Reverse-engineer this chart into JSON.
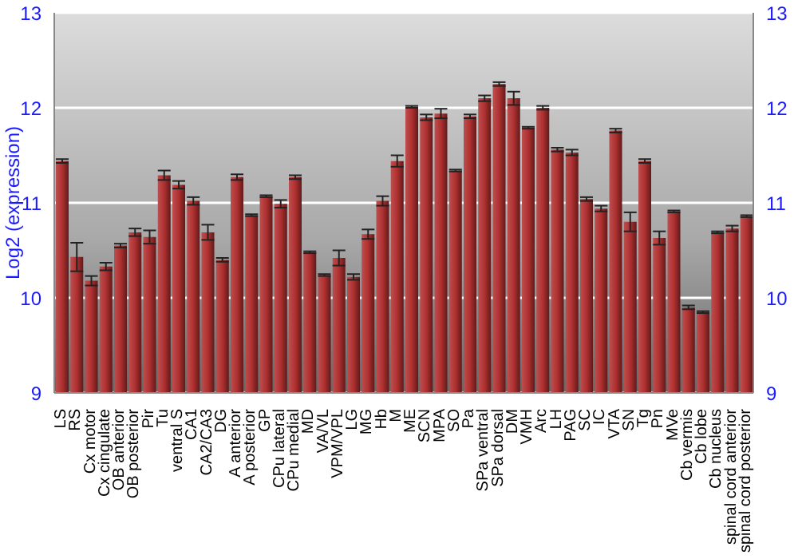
{
  "chart_data": {
    "type": "bar",
    "ylabel": "Log2 (expression)",
    "categories": [
      "LS",
      "RS",
      "Cx motor",
      "Cx cingulate",
      "OB anterior",
      "OB posterior",
      "Pir",
      "Tu",
      "ventral S",
      "CA1",
      "CA2/CA3",
      "DG",
      "A anterior",
      "A posterior",
      "GP",
      "CPu lateral",
      "CPu medial",
      "MD",
      "VA/VL",
      "VPM/VPL",
      "LG",
      "MG",
      "Hb",
      "M",
      "ME",
      "SCN",
      "MPA",
      "SO",
      "Pa",
      "SPa ventral",
      "SPa dorsal",
      "DM",
      "VMH",
      "Arc",
      "LH",
      "PAG",
      "SC",
      "IC",
      "VTA",
      "SN",
      "Tg",
      "Pn",
      "MVe",
      "Cb vermis",
      "Cb lobe",
      "Cb nucleus",
      "spinal cord anterior",
      "spinal cord posterior"
    ],
    "values": [
      11.44,
      10.43,
      10.18,
      10.33,
      10.55,
      10.69,
      10.64,
      11.29,
      11.19,
      11.02,
      10.69,
      10.4,
      11.27,
      10.87,
      11.07,
      10.99,
      11.27,
      10.48,
      10.24,
      10.42,
      10.22,
      10.67,
      11.02,
      11.44,
      12.01,
      11.9,
      11.94,
      11.34,
      11.91,
      12.1,
      12.25,
      12.1,
      11.79,
      12.0,
      11.56,
      11.53,
      11.04,
      10.94,
      11.76,
      10.8,
      11.44,
      10.63,
      10.91,
      9.9,
      9.85,
      10.69,
      10.73,
      10.86
    ],
    "errors": [
      0.02,
      0.15,
      0.05,
      0.04,
      0.02,
      0.04,
      0.07,
      0.05,
      0.04,
      0.04,
      0.08,
      0.02,
      0.03,
      0.01,
      0.01,
      0.04,
      0.02,
      0.01,
      0.01,
      0.08,
      0.03,
      0.05,
      0.05,
      0.06,
      0.01,
      0.03,
      0.05,
      0.01,
      0.02,
      0.03,
      0.02,
      0.07,
      0.01,
      0.02,
      0.02,
      0.03,
      0.02,
      0.03,
      0.02,
      0.1,
      0.02,
      0.07,
      0.01,
      0.02,
      0.01,
      0.01,
      0.03,
      0.01
    ],
    "color": "#b03030",
    "ylim": [
      9,
      13
    ],
    "yticks": [
      9,
      10,
      11,
      12,
      13
    ],
    "y2lim": [
      9,
      13
    ],
    "y2ticks": [
      9,
      10,
      11,
      12,
      13
    ],
    "grid": "y"
  }
}
